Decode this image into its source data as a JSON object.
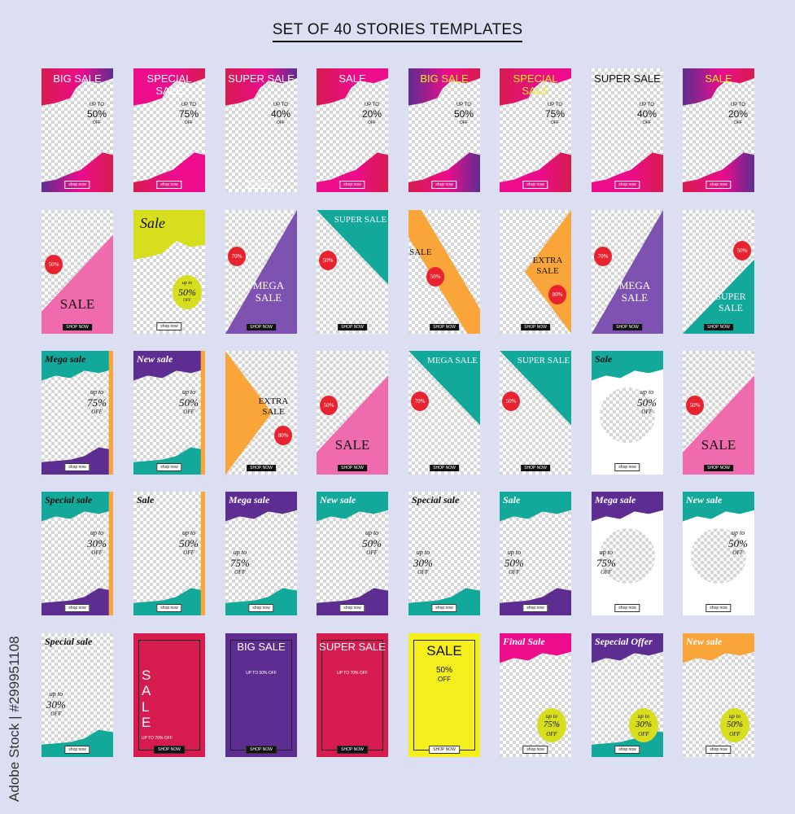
{
  "title": "SET OF 40 STORIES TEMPLATES",
  "watermark": "Adobe Stock | #299951108",
  "colors": {
    "magenta": "#ec0c8c",
    "crimson": "#d61c4e",
    "purple": "#5e2d91",
    "teal": "#12a89a",
    "orange": "#f9a53a",
    "lime": "#d7de1e",
    "pink": "#f06aae",
    "red": "#e8232f",
    "yellow": "#f6ef1e"
  },
  "cards": [
    {
      "title": "BIG SALE",
      "up": "UP TO",
      "pct": "50%",
      "off": "OFF",
      "button": "shop now",
      "variant": "wave",
      "c1": "#d61c4e",
      "c2": "#5e2d91",
      "tc": "#fff"
    },
    {
      "title": "SPECIAL SALE",
      "up": "UP TO",
      "pct": "75%",
      "off": "OFF",
      "button": "shop now",
      "variant": "wave",
      "c1": "#ec0c8c",
      "c2": "#d61c4e",
      "tc": "#fff"
    },
    {
      "title": "SUPER SALE",
      "up": "UP TO",
      "pct": "40%",
      "off": "OFF",
      "button": "shop now",
      "variant": "wave",
      "c1": "#d61c4e",
      "c2": "none",
      "tc": "#fff"
    },
    {
      "title": "SALE",
      "up": "UP TO",
      "pct": "20%",
      "off": "OFF",
      "button": "shop now",
      "variant": "wave",
      "c1": "#d61c4e",
      "c2": "#ec0c8c",
      "tc": "#fff"
    },
    {
      "title": "BIG SALE",
      "up": "UP TO",
      "pct": "50%",
      "off": "OFF",
      "button": "shop now",
      "variant": "wave",
      "c1": "#5e2d91",
      "c2": "#d61c4e",
      "tc": "#f6ef1e"
    },
    {
      "title": "SPECIAL SALE",
      "up": "UP TO",
      "pct": "75%",
      "off": "OFF",
      "button": "shop now",
      "variant": "wave",
      "c1": "#d61c4e",
      "c2": "#ec0c8c",
      "tc": "#f6ef1e"
    },
    {
      "title": "SUPER SALE",
      "up": "UP TO",
      "pct": "40%",
      "off": "OFF",
      "button": "shop now",
      "variant": "wave",
      "c1": "none",
      "c2": "#ec0c8c",
      "tc": "#111"
    },
    {
      "title": "SALE",
      "up": "UP TO",
      "pct": "20%",
      "off": "OFF",
      "button": "shop now",
      "variant": "wave",
      "c1": "#5e2d91",
      "c2": "#d61c4e",
      "tc": "#f6ef1e"
    },
    {
      "title": "SALE",
      "pct": "50%",
      "button": "SHOP NOW",
      "variant": "tri",
      "c1": "#f06aae",
      "discount_style": "badge"
    },
    {
      "title": "Sale",
      "up": "up to",
      "pct": "50%",
      "off": "OFF",
      "button": "shop now",
      "variant": "lime",
      "c1": "#d7de1e",
      "discount_style": "circle"
    },
    {
      "title": "MEGA SALE",
      "pct": "70%",
      "button": "SHOP NOW",
      "variant": "trip",
      "c1": "#7d52b0",
      "discount_style": "badge"
    },
    {
      "title": "SUPER SALE",
      "pct": "50%",
      "button": "SHOP NOW",
      "variant": "tritop",
      "c1": "#12a89a",
      "discount_style": "badge"
    },
    {
      "title": "SALE",
      "pct": "50%",
      "button": "SHOP NOW",
      "variant": "band",
      "c1": "#f9a53a",
      "discount_style": "badge"
    },
    {
      "title": "EXTRA SALE",
      "pct": "80%",
      "button": "SHOP NOW",
      "variant": "diamond",
      "c1": "#f9a53a",
      "discount_style": "badge"
    },
    {
      "title": "MEGA SALE",
      "pct": "70%",
      "button": "SHOP NOW",
      "variant": "trip",
      "c1": "#7d52b0",
      "discount_style": "badge"
    },
    {
      "title": "SUPER SALE",
      "pct": "50%",
      "button": "SHOP NOW",
      "variant": "tribot",
      "c1": "#12a89a",
      "discount_style": "badge"
    },
    {
      "title": "Mega sale",
      "up": "up to",
      "pct": "75%",
      "off": "OFF",
      "button": "shop now",
      "variant": "it",
      "c1": "#12a89a",
      "c2": "#5e2d91",
      "c3": "#f9a53a",
      "dark": true
    },
    {
      "title": "New sale",
      "up": "up to",
      "pct": "50%",
      "off": "OFF",
      "button": "shop now",
      "variant": "it",
      "c1": "#5e2d91",
      "c2": "#12a89a",
      "c3": "#f9a53a"
    },
    {
      "title": "EXTRA SALE",
      "pct": "80%",
      "button": "SHOP NOW",
      "variant": "diamond",
      "c1": "#f9a53a",
      "discount_style": "badge",
      "flip": true
    },
    {
      "title": "SALE",
      "pct": "50%",
      "button": "SHOP NOW",
      "variant": "tri",
      "c1": "#f06aae",
      "discount_style": "badge"
    },
    {
      "title": "MEGA SALE",
      "pct": "70%",
      "button": "SHOP NOW",
      "variant": "tritop",
      "c1": "#12a89a",
      "discount_style": "badge"
    },
    {
      "title": "SUPER SALE",
      "pct": "50%",
      "button": "SHOP NOW",
      "variant": "tritop",
      "c1": "#12a89a",
      "discount_style": "badge"
    },
    {
      "title": "Sale",
      "up": "up to",
      "pct": "50%",
      "off": "OFF",
      "button": "shop now",
      "variant": "it",
      "c1": "#12a89a",
      "circle": true,
      "dark": true
    },
    {
      "title": "SALE",
      "pct": "50%",
      "button": "SHOP NOW",
      "variant": "tri",
      "c1": "#f06aae",
      "discount_style": "badge"
    },
    {
      "title": "Special sale",
      "up": "up to",
      "pct": "30%",
      "off": "OFF",
      "button": "shop now",
      "variant": "it",
      "c1": "#12a89a",
      "c2": "#5e2d91",
      "c3": "#f9a53a",
      "dark": true
    },
    {
      "title": "Sale",
      "up": "up to",
      "pct": "50%",
      "off": "OFF",
      "button": "shop now",
      "variant": "it",
      "c1": "none",
      "c2": "#12a89a",
      "c3": "#f9a53a",
      "dark": true,
      "low": false
    },
    {
      "title": "Mega sale",
      "up": "up to",
      "pct": "75%",
      "off": "OFF",
      "button": "shop now",
      "variant": "it",
      "c1": "#5e2d91",
      "c2": "#12a89a",
      "low": true
    },
    {
      "title": "New sale",
      "up": "up to",
      "pct": "50%",
      "off": "OFF",
      "button": "shop now",
      "variant": "it",
      "c1": "#12a89a",
      "c2": "#5e2d91"
    },
    {
      "title": "Special sale",
      "up": "up to",
      "pct": "30%",
      "off": "OFF",
      "button": "shop now",
      "variant": "it",
      "c1": "none",
      "c2": "#12a89a",
      "dark": true,
      "low": true
    },
    {
      "title": "Sale",
      "up": "up to",
      "pct": "50%",
      "off": "OFF",
      "button": "shop now",
      "variant": "it",
      "c1": "#12a89a",
      "c2": "#5e2d91",
      "low": true
    },
    {
      "title": "Mega sale",
      "up": "up to",
      "pct": "75%",
      "off": "OFF",
      "button": "shop now",
      "variant": "it",
      "c1": "#5e2d91",
      "circle": true,
      "low": true
    },
    {
      "title": "New sale",
      "up": "up to",
      "pct": "50%",
      "off": "OFF",
      "button": "shop now",
      "variant": "it",
      "c1": "#12a89a",
      "circle": true
    },
    {
      "title": "Special sale",
      "up": "up to",
      "pct": "30%",
      "off": "OFF",
      "button": "shop now",
      "variant": "it",
      "c1": "none",
      "c2": "#12a89a",
      "dark": true,
      "low": true
    },
    {
      "title": "SALE",
      "up": "UP TO 70% OFF",
      "button": "SHOP NOW",
      "variant": "framesale",
      "c1": "#d61c4e"
    },
    {
      "title": "BIG SALE",
      "up": "UP TO 50% OFF",
      "button": "SHOP NOW",
      "variant": "frame",
      "c1": "#5e2d91"
    },
    {
      "title": "SUPER SALE",
      "up": "UP TO 70% OFF",
      "button": "SHOP NOW",
      "variant": "frame",
      "c1": "#d61c4e"
    },
    {
      "title": "SALE",
      "pct": "50%",
      "off": "OFF",
      "button": "SHOP NOW",
      "variant": "yellow",
      "c1": "#f6ef1e"
    },
    {
      "title": "Final Sale",
      "up": "up to",
      "pct": "75%",
      "off": "OFF",
      "button": "shop now",
      "variant": "it",
      "c1": "#ec0c8c",
      "discount_style": "circle"
    },
    {
      "title": "Sepecial Offer",
      "up": "up to",
      "pct": "30%",
      "off": "OFF",
      "button": "shop now",
      "variant": "it",
      "c1": "#5e2d91",
      "c2": "#12a89a",
      "discount_style": "circle"
    },
    {
      "title": "New sale",
      "up": "up to",
      "pct": "50%",
      "off": "OFF",
      "button": "shop now",
      "variant": "it",
      "c1": "#f9a53a",
      "discount_style": "circle"
    }
  ]
}
